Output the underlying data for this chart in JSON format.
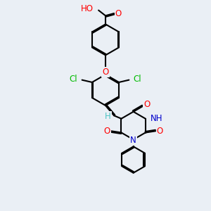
{
  "background_color": "#eaeff5",
  "bond_color": "#000000",
  "bond_width": 1.5,
  "atom_colors": {
    "C": "#000000",
    "H": "#4dc4c4",
    "O": "#ff0000",
    "N": "#0000cc",
    "Cl": "#00bb00"
  },
  "font_size": 7.5
}
